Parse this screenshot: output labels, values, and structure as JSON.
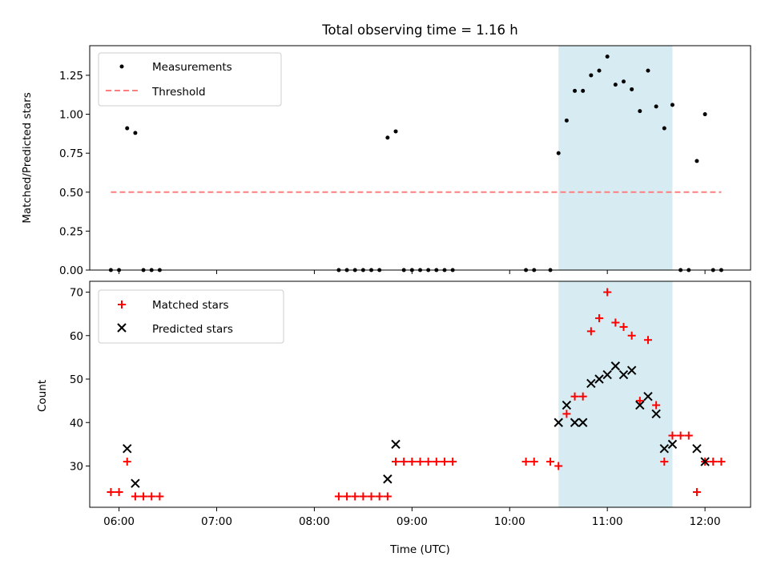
{
  "chart_data": [
    {
      "type": "scatter",
      "title": "Total observing time = 1.16 h",
      "xlabel": "",
      "ylabel": "Matched/Predicted stars",
      "ylim": [
        0,
        1.44
      ],
      "yticks": [
        "0.00",
        "0.25",
        "0.50",
        "0.75",
        "1.00",
        "1.25"
      ],
      "xlim": [
        "05:42",
        "12:28"
      ],
      "shaded_region": {
        "x_start": "10:30",
        "x_end": "11:40",
        "color": "#add8e6"
      },
      "legend": {
        "position": "top-left",
        "entries": [
          "Measurements",
          "Threshold"
        ]
      },
      "series": [
        {
          "name": "Measurements",
          "marker": "dot",
          "color": "#000000",
          "points": [
            [
              "05:55",
              0
            ],
            [
              "06:00",
              0
            ],
            [
              "06:05",
              0.91
            ],
            [
              "06:10",
              0.88
            ],
            [
              "06:15",
              0
            ],
            [
              "06:20",
              0
            ],
            [
              "06:25",
              0
            ],
            [
              "08:15",
              0
            ],
            [
              "08:20",
              0
            ],
            [
              "08:25",
              0
            ],
            [
              "08:30",
              0
            ],
            [
              "08:35",
              0
            ],
            [
              "08:40",
              0
            ],
            [
              "08:45",
              0.85
            ],
            [
              "08:50",
              0.89
            ],
            [
              "08:55",
              0
            ],
            [
              "09:00",
              0
            ],
            [
              "09:05",
              0
            ],
            [
              "09:10",
              0
            ],
            [
              "09:15",
              0
            ],
            [
              "09:20",
              0
            ],
            [
              "09:25",
              0
            ],
            [
              "10:10",
              0
            ],
            [
              "10:15",
              0
            ],
            [
              "10:25",
              0
            ],
            [
              "10:30",
              0.75
            ],
            [
              "10:35",
              0.96
            ],
            [
              "10:40",
              1.15
            ],
            [
              "10:45",
              1.15
            ],
            [
              "10:50",
              1.25
            ],
            [
              "10:55",
              1.28
            ],
            [
              "11:00",
              1.37
            ],
            [
              "11:05",
              1.19
            ],
            [
              "11:10",
              1.21
            ],
            [
              "11:15",
              1.16
            ],
            [
              "11:20",
              1.02
            ],
            [
              "11:25",
              1.28
            ],
            [
              "11:30",
              1.05
            ],
            [
              "11:35",
              0.91
            ],
            [
              "11:40",
              1.06
            ],
            [
              "11:45",
              0
            ],
            [
              "11:50",
              0
            ],
            [
              "11:55",
              0.7
            ],
            [
              "12:00",
              1.0
            ],
            [
              "12:05",
              0
            ],
            [
              "12:10",
              0
            ]
          ]
        },
        {
          "name": "Threshold",
          "marker": "dashed-line",
          "color": "#ff7f7f",
          "points": [
            [
              "05:55",
              0.5
            ],
            [
              "12:10",
              0.5
            ]
          ]
        }
      ]
    },
    {
      "type": "scatter",
      "title": "",
      "xlabel": "Time (UTC)",
      "ylabel": "Count",
      "ylim": [
        20.5,
        72.5
      ],
      "yticks": [
        "30",
        "40",
        "50",
        "60",
        "70"
      ],
      "xlim": [
        "05:42",
        "12:28"
      ],
      "xticks": [
        "06:00",
        "07:00",
        "08:00",
        "09:00",
        "10:00",
        "11:00",
        "12:00"
      ],
      "shaded_region": {
        "x_start": "10:30",
        "x_end": "11:40",
        "color": "#add8e6"
      },
      "legend": {
        "position": "top-left",
        "entries": [
          "Matched stars",
          "Predicted stars"
        ]
      },
      "series": [
        {
          "name": "Matched stars",
          "marker": "plus",
          "color": "#ff0000",
          "points": [
            [
              "05:55",
              24
            ],
            [
              "06:00",
              24
            ],
            [
              "06:05",
              31
            ],
            [
              "06:10",
              23
            ],
            [
              "06:15",
              23
            ],
            [
              "06:20",
              23
            ],
            [
              "06:25",
              23
            ],
            [
              "08:15",
              23
            ],
            [
              "08:20",
              23
            ],
            [
              "08:25",
              23
            ],
            [
              "08:30",
              23
            ],
            [
              "08:35",
              23
            ],
            [
              "08:40",
              23
            ],
            [
              "08:45",
              23
            ],
            [
              "08:50",
              31
            ],
            [
              "08:55",
              31
            ],
            [
              "09:00",
              31
            ],
            [
              "09:05",
              31
            ],
            [
              "09:10",
              31
            ],
            [
              "09:15",
              31
            ],
            [
              "09:20",
              31
            ],
            [
              "09:25",
              31
            ],
            [
              "10:10",
              31
            ],
            [
              "10:15",
              31
            ],
            [
              "10:25",
              31
            ],
            [
              "10:30",
              30
            ],
            [
              "10:35",
              42
            ],
            [
              "10:40",
              46
            ],
            [
              "10:45",
              46
            ],
            [
              "10:50",
              61
            ],
            [
              "10:55",
              64
            ],
            [
              "11:00",
              70
            ],
            [
              "11:05",
              63
            ],
            [
              "11:10",
              62
            ],
            [
              "11:15",
              60
            ],
            [
              "11:20",
              45
            ],
            [
              "11:25",
              59
            ],
            [
              "11:30",
              44
            ],
            [
              "11:35",
              31
            ],
            [
              "11:40",
              37
            ],
            [
              "11:45",
              37
            ],
            [
              "11:50",
              37
            ],
            [
              "11:55",
              24
            ],
            [
              "12:00",
              31
            ],
            [
              "12:05",
              31
            ],
            [
              "12:10",
              31
            ]
          ]
        },
        {
          "name": "Predicted stars",
          "marker": "x",
          "color": "#000000",
          "points": [
            [
              "06:05",
              34
            ],
            [
              "06:10",
              26
            ],
            [
              "08:45",
              27
            ],
            [
              "08:50",
              35
            ],
            [
              "10:30",
              40
            ],
            [
              "10:35",
              44
            ],
            [
              "10:40",
              40
            ],
            [
              "10:45",
              40
            ],
            [
              "10:50",
              49
            ],
            [
              "10:55",
              50
            ],
            [
              "11:00",
              51
            ],
            [
              "11:05",
              53
            ],
            [
              "11:10",
              51
            ],
            [
              "11:15",
              52
            ],
            [
              "11:20",
              44
            ],
            [
              "11:25",
              46
            ],
            [
              "11:30",
              42
            ],
            [
              "11:35",
              34
            ],
            [
              "11:40",
              35
            ],
            [
              "11:55",
              34
            ],
            [
              "12:00",
              31
            ]
          ]
        }
      ]
    }
  ]
}
